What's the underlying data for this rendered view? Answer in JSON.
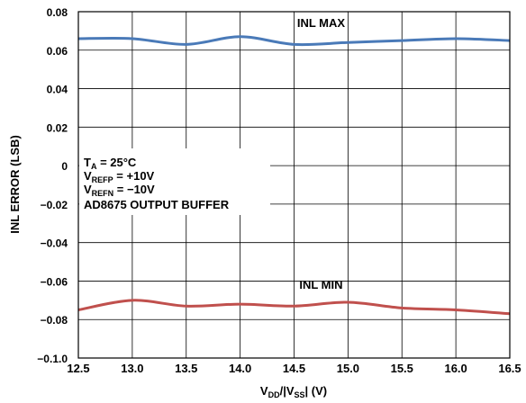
{
  "chart_data": {
    "type": "line",
    "xlabel": {
      "main": "V",
      "sub1": "DD",
      "mid": "/|V",
      "sub2": "SS",
      "tail": "| (V)"
    },
    "ylabel": "INL ERROR (LSB)",
    "xlim": [
      12.5,
      16.5
    ],
    "ylim": [
      -0.1,
      0.08
    ],
    "grid": true,
    "x_ticks": [
      "12.5",
      "13.0",
      "13.5",
      "14.0",
      "14.5",
      "15.0",
      "15.5",
      "16.0",
      "16.5"
    ],
    "y_ticks": [
      "0.08",
      "0.06",
      "0.04",
      "0.02",
      "0",
      "−0.02",
      "−0.04",
      "−0.06",
      "−0.08",
      "−0.1.0"
    ],
    "series": [
      {
        "name": "INL MAX",
        "color": "#4a7ab8",
        "x": [
          12.5,
          13.0,
          13.5,
          14.0,
          14.5,
          15.0,
          15.5,
          16.0,
          16.5
        ],
        "y": [
          0.066,
          0.066,
          0.063,
          0.067,
          0.063,
          0.064,
          0.065,
          0.066,
          0.065
        ]
      },
      {
        "name": "INL MIN",
        "color": "#c0504d",
        "x": [
          12.5,
          13.0,
          13.5,
          14.0,
          14.5,
          15.0,
          15.5,
          16.0,
          16.5
        ],
        "y": [
          -0.075,
          -0.07,
          -0.073,
          -0.072,
          -0.073,
          -0.071,
          -0.074,
          -0.075,
          -0.077
        ]
      }
    ],
    "annotation": {
      "ta": {
        "main": "T",
        "sub": "A",
        "tail": " = 25°C"
      },
      "vrefp": {
        "main": "V",
        "sub": "REFP",
        "tail": " = +10V"
      },
      "vrefn": {
        "main": "V",
        "sub": "REFN",
        "tail": " = −10V"
      },
      "buffer": "AD8675 OUTPUT BUFFER"
    }
  }
}
